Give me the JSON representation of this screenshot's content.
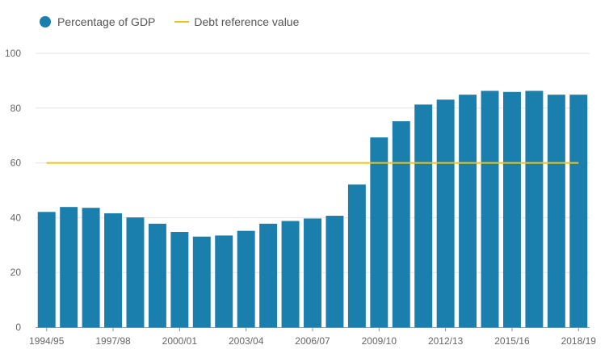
{
  "legend": {
    "bars_label": "Percentage of GDP",
    "line_label": "Debt reference value"
  },
  "colors": {
    "bar": "#1a7fad",
    "reference": "#f2c314",
    "grid": "#e3e3e3",
    "axis": "#8f8f8f",
    "tick_text": "#666666"
  },
  "chart_data": {
    "type": "bar",
    "categories": [
      "1994/95",
      "1995/96",
      "1996/97",
      "1997/98",
      "1998/99",
      "1999/00",
      "2000/01",
      "2001/02",
      "2002/03",
      "2003/04",
      "2004/05",
      "2005/06",
      "2006/07",
      "2007/08",
      "2008/09",
      "2009/10",
      "2010/11",
      "2011/12",
      "2012/13",
      "2013/14",
      "2014/15",
      "2015/16",
      "2016/17",
      "2017/18",
      "2018/19"
    ],
    "x_tick_labels": [
      "1994/95",
      "1997/98",
      "2000/01",
      "2003/04",
      "2006/07",
      "2009/10",
      "2012/13",
      "2015/16",
      "2018/19"
    ],
    "series": [
      {
        "name": "Percentage of GDP",
        "type": "bar",
        "values": [
          42.1,
          43.9,
          43.6,
          41.6,
          40.1,
          37.8,
          34.8,
          33.1,
          33.5,
          35.2,
          37.8,
          38.8,
          39.7,
          40.7,
          52.1,
          69.3,
          75.2,
          81.3,
          83.1,
          84.9,
          86.3,
          85.9,
          86.3,
          84.9,
          84.9
        ]
      },
      {
        "name": "Debt reference value",
        "type": "line",
        "values": [
          60,
          60,
          60,
          60,
          60,
          60,
          60,
          60,
          60,
          60,
          60,
          60,
          60,
          60,
          60,
          60,
          60,
          60,
          60,
          60,
          60,
          60,
          60,
          60,
          60
        ]
      }
    ],
    "ylim": [
      0,
      100
    ],
    "y_ticks": [
      0,
      20,
      40,
      60,
      80,
      100
    ],
    "xlabel": "",
    "ylabel": "",
    "grid": true,
    "legend_position": "top-left"
  }
}
